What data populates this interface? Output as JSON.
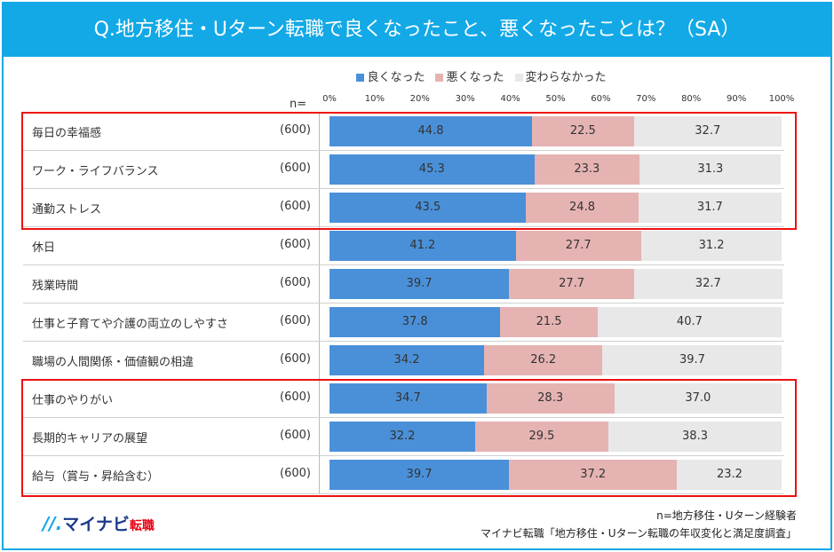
{
  "chart_data": {
    "type": "bar",
    "stacked": true,
    "orientation": "horizontal",
    "title": "Q.地方移住・Uターン転職で良くなったこと、悪くなったことは？（SA）",
    "n_label": "n=",
    "categories": [
      "毎日の幸福感",
      "ワーク・ライフバランス",
      "通勤ストレス",
      "休日",
      "残業時間",
      "仕事と子育てや介護の両立のしやすさ",
      "職場の人間関係・価値観の相違",
      "仕事のやりがい",
      "長期的キャリアの展望",
      "給与（賞与・昇給含む）"
    ],
    "n": [
      "(600)",
      "(600)",
      "(600)",
      "(600)",
      "(600)",
      "(600)",
      "(600)",
      "(600)",
      "(600)",
      "(600)"
    ],
    "series": [
      {
        "name": "良くなった",
        "color": "#4a90d9",
        "values": [
          44.8,
          45.3,
          43.5,
          41.2,
          39.7,
          37.8,
          34.2,
          34.7,
          32.2,
          39.7
        ]
      },
      {
        "name": "悪くなった",
        "color": "#e6b3b3",
        "values": [
          22.5,
          23.3,
          24.8,
          27.7,
          27.7,
          21.5,
          26.2,
          28.3,
          29.5,
          37.2
        ]
      },
      {
        "name": "変わらなかった",
        "color": "#e8e8e8",
        "values": [
          32.7,
          31.3,
          31.7,
          31.2,
          32.7,
          40.7,
          39.7,
          37.0,
          38.3,
          23.2
        ]
      }
    ],
    "xticks": [
      "0%",
      "10%",
      "20%",
      "30%",
      "40%",
      "50%",
      "60%",
      "70%",
      "80%",
      "90%",
      "100%"
    ],
    "xlim": [
      0,
      100
    ],
    "highlighted_groups": [
      [
        0,
        2
      ],
      [
        7,
        9
      ]
    ],
    "highlight_color": "#ee1111"
  },
  "footer": {
    "logo_text": "マイナビ転職",
    "note1": "n=地方移住・Uターン経験者",
    "note2": "マイナビ転職「地方移住・Uターン転職の年収変化と満足度調査」"
  }
}
